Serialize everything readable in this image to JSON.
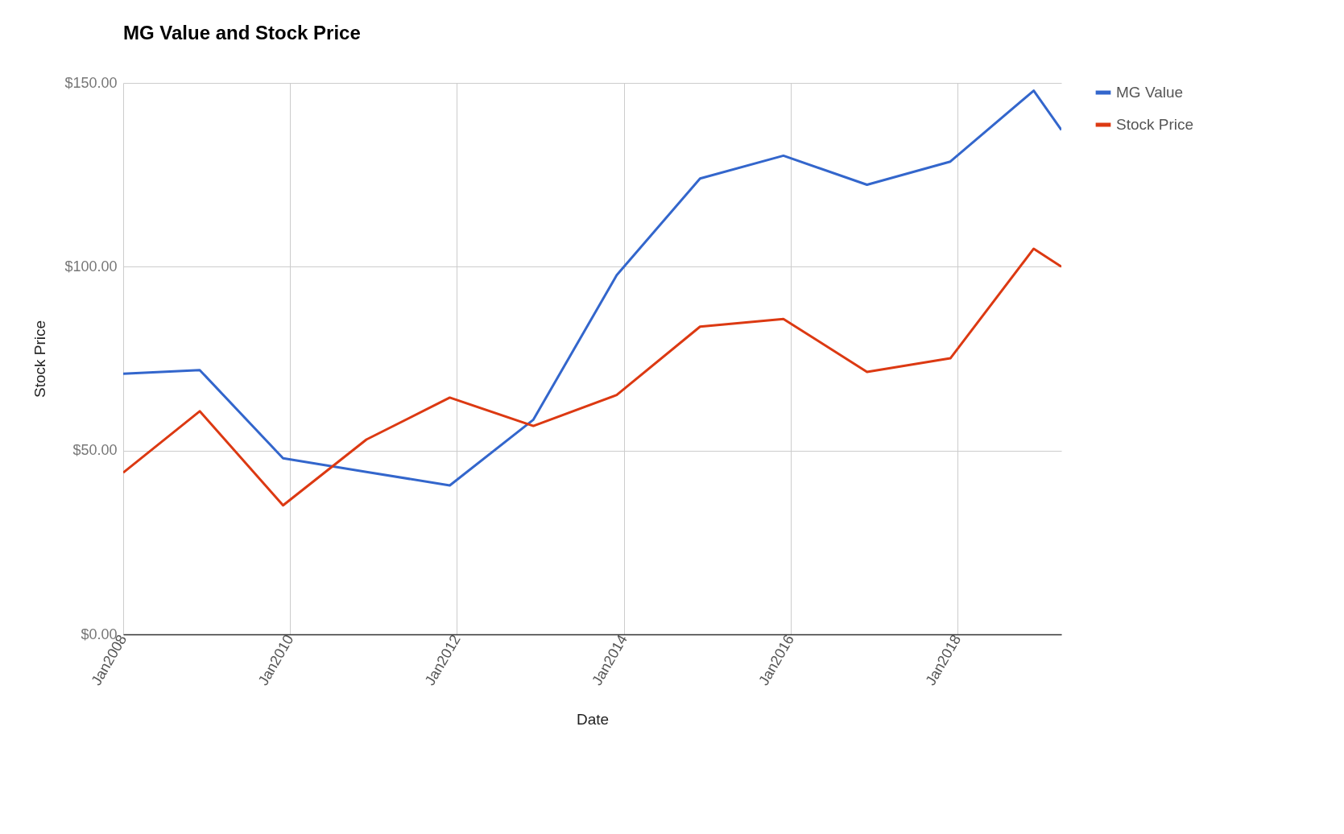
{
  "chart_data": {
    "type": "line",
    "title": "MG Value and Stock Price",
    "xlabel": "Date",
    "ylabel": "Stock Price",
    "x": [
      "2008-01",
      "2008-12",
      "2009-12",
      "2010-12",
      "2011-12",
      "2012-12",
      "2013-12",
      "2014-12",
      "2015-12",
      "2016-12",
      "2017-12",
      "2018-12",
      "2019-04"
    ],
    "series": [
      {
        "name": "MG Value",
        "color": "#3366cc",
        "values": [
          70.9,
          71.9,
          47.9,
          44.2,
          40.5,
          58.4,
          97.7,
          124,
          130.2,
          122.3,
          128.6,
          147.9,
          137.2
        ]
      },
      {
        "name": "Stock Price",
        "color": "#dc3912",
        "values": [
          44,
          60.7,
          35.1,
          53,
          64.4,
          56.7,
          65.1,
          83.7,
          85.8,
          71.4,
          75.1,
          104.9,
          100
        ]
      }
    ],
    "xlim": [
      "2008-01",
      "2019-04"
    ],
    "xticks": [
      {
        "value": "2008-01",
        "label": "Jan2008"
      },
      {
        "value": "2010-01",
        "label": "Jan2010"
      },
      {
        "value": "2012-01",
        "label": "Jan2012"
      },
      {
        "value": "2014-01",
        "label": "Jan2014"
      },
      {
        "value": "2016-01",
        "label": "Jan2016"
      },
      {
        "value": "2018-01",
        "label": "Jan2018"
      }
    ],
    "ylim": [
      0,
      150
    ],
    "yticks": [
      {
        "value": 0,
        "label": "$0.00"
      },
      {
        "value": 50,
        "label": "$50.00"
      },
      {
        "value": 100,
        "label": "$100.00"
      },
      {
        "value": 150,
        "label": "$150.00"
      }
    ],
    "grid": true,
    "legend": "top right",
    "marker": "none",
    "line_style": "solid"
  }
}
